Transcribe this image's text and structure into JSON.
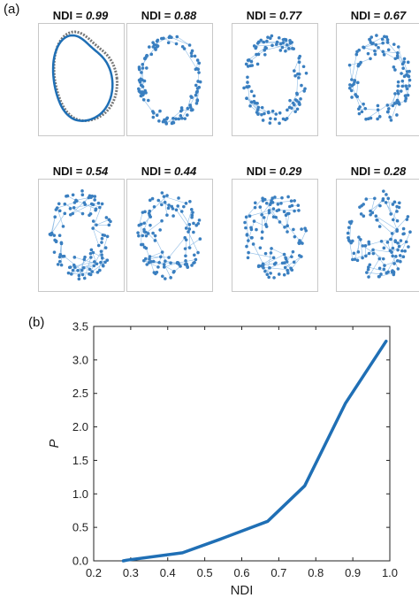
{
  "panel_a": {
    "label": "(a)",
    "items": [
      {
        "prefix": "NDI",
        "eq": "=",
        "value": "0.99"
      },
      {
        "prefix": "NDI",
        "eq": "=",
        "value": "0.88"
      },
      {
        "prefix": "NDI",
        "eq": "=",
        "value": "0.77"
      },
      {
        "prefix": "NDI",
        "eq": "=",
        "value": "0.67"
      },
      {
        "prefix": "NDI",
        "eq": "=",
        "value": "0.54"
      },
      {
        "prefix": "NDI",
        "eq": "=",
        "value": "0.44"
      },
      {
        "prefix": "NDI",
        "eq": "=",
        "value": "0.29"
      },
      {
        "prefix": "NDI",
        "eq": "=",
        "value": "0.28"
      }
    ],
    "colors": {
      "node": "#3a7fc0",
      "edge": "#8fbde6",
      "curve": "#1f6fb5",
      "ghost": "#777777"
    }
  },
  "panel_b": {
    "label": "(b)"
  },
  "chart_data": {
    "type": "line",
    "title": "",
    "xlabel": "NDI",
    "ylabel": "P",
    "xlim": [
      0.2,
      1.0
    ],
    "ylim": [
      0,
      3.5
    ],
    "xticks": [
      "0.2",
      "0.3",
      "0.4",
      "0.5",
      "0.6",
      "0.7",
      "0.8",
      "0.9",
      "1.0"
    ],
    "yticks": [
      "0.0",
      "0.5",
      "1.0",
      "1.5",
      "2.0",
      "2.5",
      "3.0",
      "3.5"
    ],
    "grid": false,
    "line_color": "#1f6fb5",
    "series": [
      {
        "x": [
          0.28,
          0.29,
          0.44,
          0.54,
          0.67,
          0.77,
          0.88,
          0.99
        ],
        "y": [
          0.0,
          0.01,
          0.12,
          0.32,
          0.59,
          1.12,
          2.35,
          3.28
        ]
      }
    ]
  }
}
